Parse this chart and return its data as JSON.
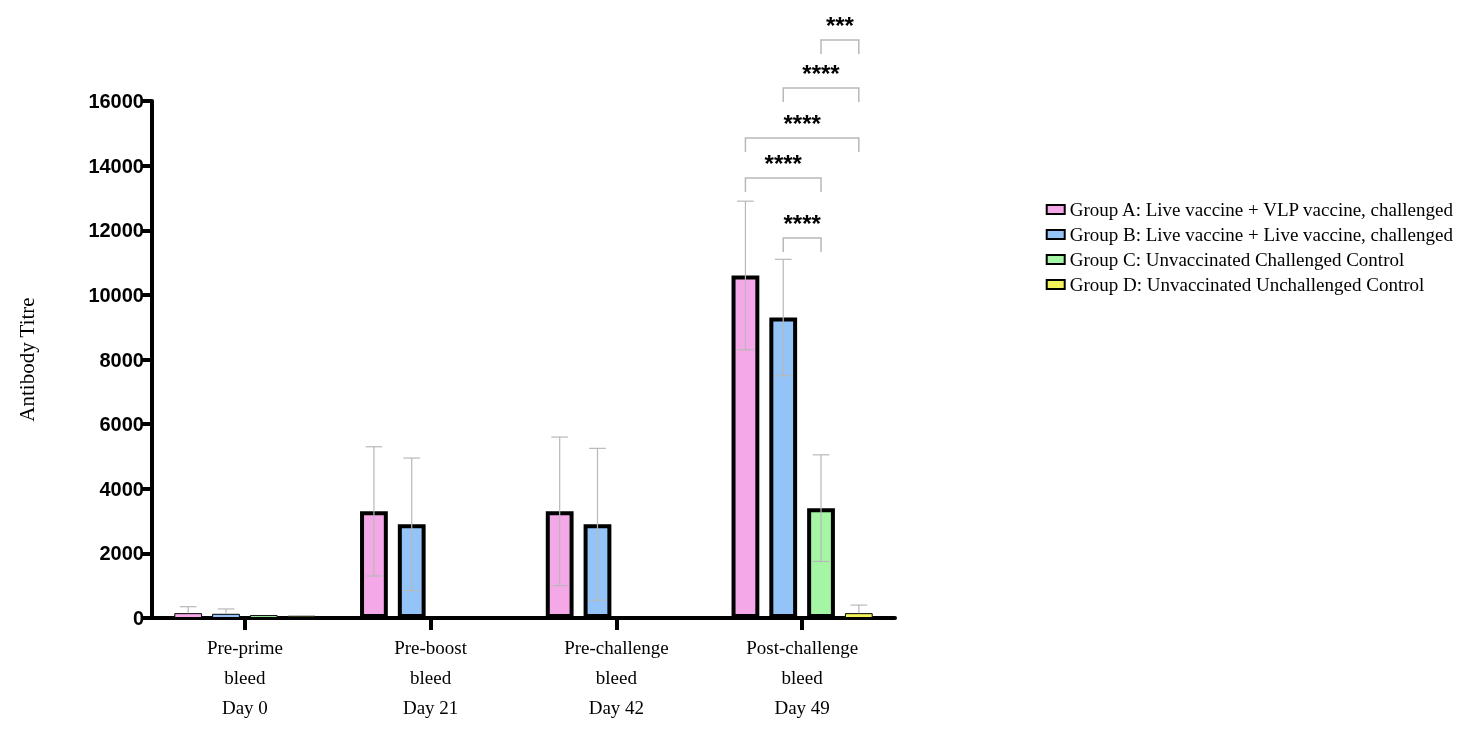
{
  "chart_data": {
    "type": "bar",
    "ylabel": "Antibody Titre",
    "categories": [
      "Pre-prime\nbleed\nDay 0",
      "Pre-boost\nbleed\nDay 21",
      "Pre-challenge\nbleed\nDay 42",
      "Post-challenge\nbleed\nDay 49"
    ],
    "series": [
      {
        "name": "Group A: Live vaccine + VLP vaccine, challenged",
        "color": "#f5a8e8",
        "values": [
          150,
          3300,
          3300,
          10600
        ],
        "errors": [
          [
            150,
            350
          ],
          2000,
          2300,
          2300
        ]
      },
      {
        "name": "Group B: Live vaccine + Live vaccine, challenged",
        "color": "#94c4f7",
        "values": [
          130,
          2900,
          2900,
          9300
        ],
        "errors": [
          [
            130,
            280
          ],
          2050,
          2350,
          1800
        ]
      },
      {
        "name": "Group C: Unvaccinated Challenged Control",
        "color": "#a4f5a4",
        "values": [
          90,
          null,
          null,
          3400
        ],
        "errors": [
          null,
          null,
          null,
          1650
        ]
      },
      {
        "name": "Group D: Unvaccinated Unchallenged Control",
        "color": "#f2f25a",
        "values": [
          70,
          null,
          null,
          150
        ],
        "errors": [
          null,
          null,
          null,
          [
            150,
            400
          ]
        ]
      }
    ],
    "ylim": [
      0,
      16000
    ],
    "yticks": [
      0,
      2000,
      4000,
      6000,
      8000,
      10000,
      12000,
      14000,
      16000
    ],
    "grid": false,
    "legend": "right",
    "annotations": [
      "***",
      "****",
      "****",
      "****",
      "****"
    ]
  }
}
